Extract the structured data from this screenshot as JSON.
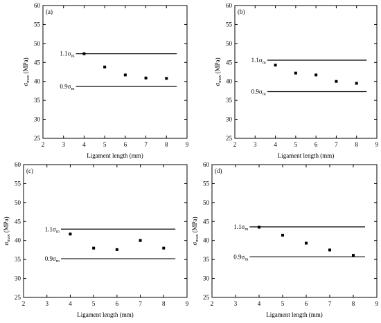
{
  "figure": {
    "panel_count": 4
  },
  "chart_data": [
    {
      "type": "scatter",
      "panel_label": "(a)",
      "xlabel": "Ligament length (mm)",
      "ylabel_main": "σ",
      "ylabel_sub": "max",
      "ylabel_unit": " (MPa)",
      "xlim": [
        2,
        9
      ],
      "ylim": [
        25,
        60
      ],
      "xticks": [
        "2",
        "3",
        "4",
        "5",
        "6",
        "7",
        "8",
        "9"
      ],
      "yticks": [
        "25",
        "30",
        "35",
        "40",
        "45",
        "50",
        "55",
        "60"
      ],
      "marker": "square",
      "color": "#000000",
      "x": [
        4,
        5,
        6,
        7,
        8
      ],
      "y": [
        47.3,
        43.8,
        41.7,
        40.9,
        40.8
      ],
      "reference_lines": [
        {
          "label_main": "1.1σ",
          "label_sub": "m",
          "y": 47.3,
          "x_start": 3.6,
          "x_end": 8.5
        },
        {
          "label_main": "0.9σ",
          "label_sub": "m",
          "y": 38.7,
          "x_start": 3.6,
          "x_end": 8.5
        }
      ]
    },
    {
      "type": "scatter",
      "panel_label": "(b)",
      "xlabel": "Ligament length (mm)",
      "ylabel_main": "σ",
      "ylabel_sub": "max",
      "ylabel_unit": " (MPa)",
      "xlim": [
        2,
        9
      ],
      "ylim": [
        25,
        60
      ],
      "xticks": [
        "2",
        "3",
        "4",
        "5",
        "6",
        "7",
        "8",
        "9"
      ],
      "yticks": [
        "25",
        "30",
        "35",
        "40",
        "45",
        "50",
        "55",
        "60"
      ],
      "marker": "square",
      "color": "#000000",
      "x": [
        4,
        5,
        6,
        7,
        8
      ],
      "y": [
        44.3,
        42.2,
        41.7,
        40.0,
        39.5
      ],
      "reference_lines": [
        {
          "label_main": "1.1σ",
          "label_sub": "m",
          "y": 45.6,
          "x_start": 3.6,
          "x_end": 8.5
        },
        {
          "label_main": "0.9σ",
          "label_sub": "m",
          "y": 37.3,
          "x_start": 3.6,
          "x_end": 8.5
        }
      ]
    },
    {
      "type": "scatter",
      "panel_label": "(c)",
      "xlabel": "Ligament length (mm)",
      "ylabel_main": "σ",
      "ylabel_sub": "max",
      "ylabel_unit": " (MPa)",
      "xlim": [
        2,
        9
      ],
      "ylim": [
        25,
        60
      ],
      "xticks": [
        "2",
        "3",
        "4",
        "5",
        "6",
        "7",
        "8",
        "9"
      ],
      "yticks": [
        "25",
        "30",
        "35",
        "40",
        "45",
        "50",
        "55",
        "60"
      ],
      "marker": "square",
      "color": "#000000",
      "x": [
        4,
        5,
        6,
        7,
        8
      ],
      "y": [
        41.7,
        38.0,
        37.6,
        40.0,
        38.0
      ],
      "reference_lines": [
        {
          "label_main": "1.1σ",
          "label_sub": "m",
          "y": 43.0,
          "x_start": 3.6,
          "x_end": 8.5
        },
        {
          "label_main": "0.9σ",
          "label_sub": "m",
          "y": 35.2,
          "x_start": 3.6,
          "x_end": 8.5
        }
      ]
    },
    {
      "type": "scatter",
      "panel_label": "(d)",
      "xlabel": "Ligament length (mm)",
      "ylabel_main": "σ",
      "ylabel_sub": "max",
      "ylabel_unit": " (MPa)",
      "xlim": [
        2,
        9
      ],
      "ylim": [
        25,
        60
      ],
      "xticks": [
        "2",
        "3",
        "4",
        "5",
        "6",
        "7",
        "8",
        "9"
      ],
      "yticks": [
        "25",
        "30",
        "35",
        "40",
        "45",
        "50",
        "55",
        "60"
      ],
      "marker": "square",
      "color": "#000000",
      "x": [
        4,
        5,
        6,
        7,
        8
      ],
      "y": [
        43.5,
        41.4,
        39.3,
        37.5,
        36.1
      ],
      "reference_lines": [
        {
          "label_main": "1.1σ",
          "label_sub": "m",
          "y": 43.6,
          "x_start": 3.6,
          "x_end": 8.5
        },
        {
          "label_main": "0.9σ",
          "label_sub": "m",
          "y": 35.7,
          "x_start": 3.6,
          "x_end": 8.5
        }
      ]
    }
  ]
}
